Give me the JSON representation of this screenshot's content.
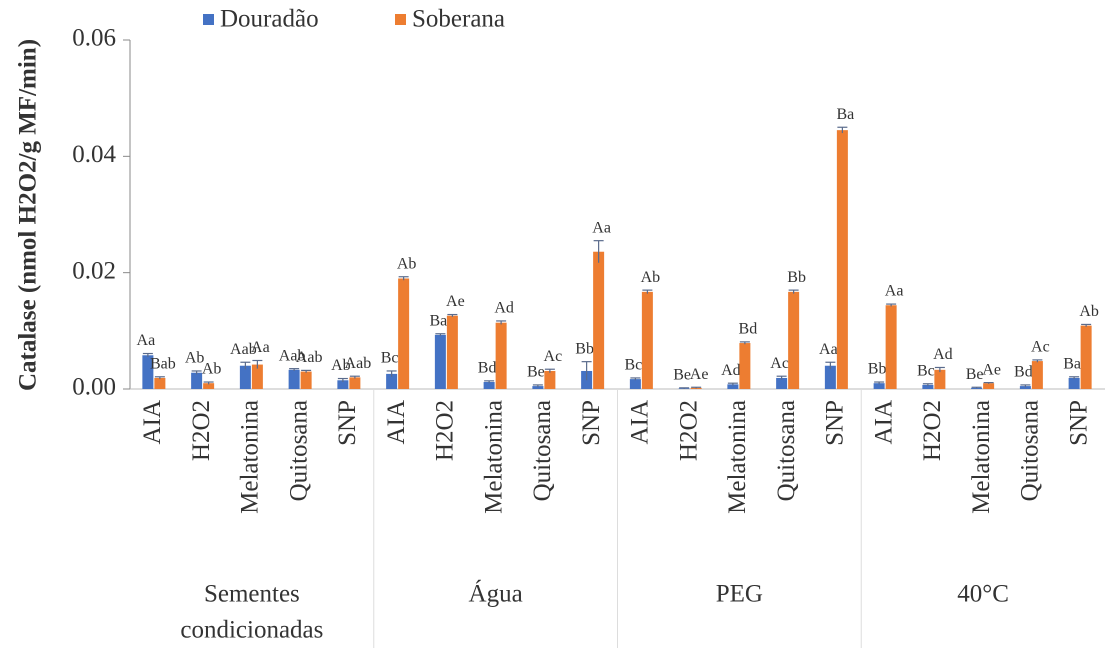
{
  "chart_data": {
    "type": "bar",
    "y_label": "Catalase (nmol H2O2/g MF/min)",
    "ylim": [
      0,
      0.06
    ],
    "yticks": [
      {
        "value": 0,
        "label": "0.00"
      },
      {
        "value": 0.02,
        "label": "0.02"
      },
      {
        "value": 0.04,
        "label": "0.04"
      },
      {
        "value": 0.06,
        "label": "0.06"
      }
    ],
    "groups": [
      {
        "label": [
          "Sementes",
          "condicionadas"
        ],
        "categories": [
          "AIA",
          "H2O2",
          "Melatonina",
          "Quitosana",
          "SNP"
        ]
      },
      {
        "label": [
          "Água"
        ],
        "categories": [
          "AIA",
          "H2O2",
          "Melatonina",
          "Quitosana",
          "SNP"
        ]
      },
      {
        "label": [
          "PEG"
        ],
        "categories": [
          "AIA",
          "H2O2",
          "Melatonina",
          "Quitosana",
          "SNP"
        ]
      },
      {
        "label": [
          "40°C"
        ],
        "categories": [
          "AIA",
          "H2O2",
          "Melatonina",
          "Quitosana",
          "SNP"
        ]
      }
    ],
    "series": [
      {
        "name": "Douradão",
        "color": "#4472c4",
        "values": [
          0.0058,
          0.0028,
          0.004,
          0.0033,
          0.0015,
          0.0026,
          0.0093,
          0.0012,
          0.0005,
          0.0031,
          0.0017,
          0.0001,
          0.0008,
          0.0019,
          0.004,
          0.001,
          0.0007,
          0.0002,
          0.0005,
          0.0019
        ],
        "errors": [
          0.0003,
          0.0003,
          0.0006,
          0.0002,
          0.0003,
          0.0005,
          0.0002,
          0.0002,
          0.0002,
          0.0016,
          0.0002,
          0.0001,
          0.0002,
          0.0003,
          0.0006,
          0.0002,
          0.0002,
          0.0001,
          0.0002,
          0.0002
        ],
        "labels": [
          "Aa",
          "Ab",
          "Aab",
          "Aab",
          "Ab",
          "Bc",
          "Ba",
          "Bd",
          "Be",
          "Bb",
          "Bc",
          "Be",
          "Ad",
          "Ac",
          "Aa",
          "Bb",
          "Bc",
          "Be",
          "Bd",
          "Ba"
        ]
      },
      {
        "name": "Soberana",
        "color": "#ed7d31",
        "values": [
          0.0019,
          0.001,
          0.0042,
          0.003,
          0.002,
          0.019,
          0.0126,
          0.0114,
          0.0031,
          0.0236,
          0.0167,
          0.0002,
          0.0079,
          0.0167,
          0.0445,
          0.0144,
          0.0033,
          0.001,
          0.0048,
          0.0109
        ],
        "errors": [
          0.0002,
          0.0002,
          0.0007,
          0.0002,
          0.0002,
          0.0003,
          0.0002,
          0.0003,
          0.0003,
          0.0019,
          0.0003,
          0.0001,
          0.0002,
          0.0003,
          0.0005,
          0.0002,
          0.0004,
          0.0001,
          0.0002,
          0.0002
        ],
        "labels": [
          "Bab",
          "Ab",
          "Aa",
          "Aab",
          "Aab",
          "Ab",
          "Ae",
          "Ad",
          "Ac",
          "Aa",
          "Ab",
          "Ae",
          "Bd",
          "Bb",
          "Ba",
          "Aa",
          "Ad",
          "Ae",
          "Ac",
          "Ab"
        ]
      }
    ],
    "legend": "top"
  }
}
